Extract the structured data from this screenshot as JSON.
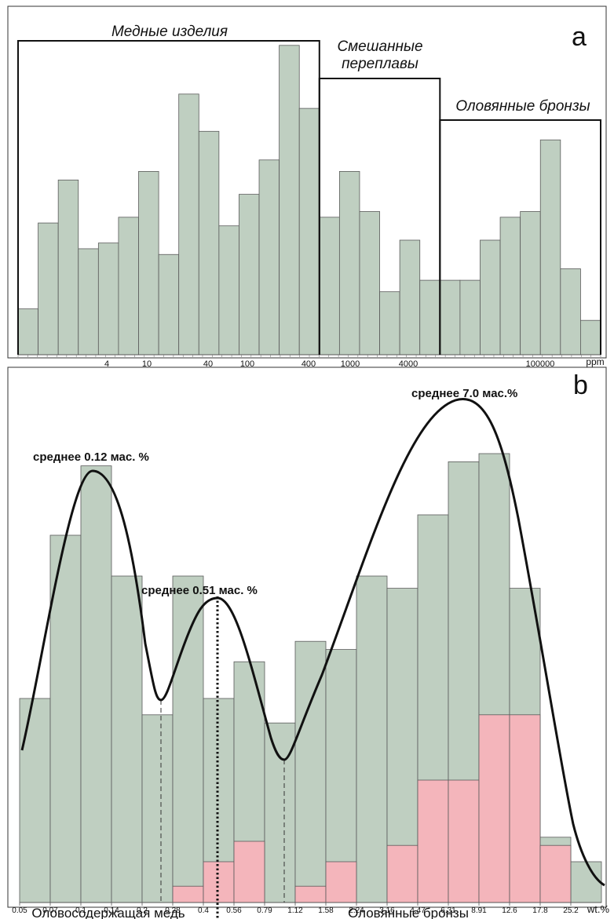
{
  "colors": {
    "green": "#bfcfc1",
    "pink": "#f4b5bb",
    "outline": "#5a5a5a",
    "curve": "#111111"
  },
  "chart_data": [
    {
      "type": "bar",
      "panel": "a",
      "x_scale": "log",
      "unit": "ppm",
      "tick_labels": [
        "4",
        "10",
        "40",
        "100",
        "400",
        "1000",
        "4000",
        "100000"
      ],
      "values": [
        1.6,
        4.6,
        6.1,
        3.7,
        3.9,
        4.8,
        6.4,
        3.5,
        9.1,
        7.8,
        4.5,
        5.6,
        6.8,
        10.8,
        8.6,
        4.8,
        6.4,
        5.0,
        2.2,
        4.0,
        2.6,
        2.6,
        2.6,
        4.0,
        4.8,
        5.0,
        7.5,
        3.0,
        1.2
      ],
      "groups": [
        {
          "label": "Медные изделия",
          "bins": [
            0,
            15
          ]
        },
        {
          "label": "Смешанные переплавы",
          "bins": [
            15,
            21
          ]
        },
        {
          "label": "Оловянные бронзы",
          "bins": [
            21,
            29
          ]
        }
      ]
    },
    {
      "type": "bar",
      "panel": "b",
      "unit": "wt.%",
      "categories": [
        "0.05",
        "0.07",
        "0.1",
        "0.14",
        "0.2",
        "0.28",
        "0.4",
        "0.56",
        "0.79",
        "1.12",
        "1.58",
        "2.24",
        "3.16",
        "4.47",
        "6.31",
        "8.91",
        "12.6",
        "17.8",
        "25.2"
      ],
      "series": [
        {
          "color": "green",
          "values": [
            5.0,
            9.0,
            10.7,
            8.0,
            4.6,
            8.0,
            5.0,
            5.9,
            4.4,
            6.4,
            6.2,
            8.0,
            7.7,
            9.5,
            10.8,
            11.0,
            7.7,
            1.6,
            1.0
          ]
        },
        {
          "color": "pink",
          "values": [
            0,
            0,
            0,
            0,
            0,
            0.4,
            1.0,
            1.5,
            0,
            0.4,
            1.0,
            0,
            1.4,
            3.0,
            3.0,
            4.6,
            4.6,
            1.4,
            0
          ]
        }
      ],
      "annotations": [
        "среднее 0.12 мас. %",
        "среднее 0.51 мас. %",
        "среднее 7.0 мас.%"
      ]
    }
  ],
  "panel_a": {
    "letter": "a",
    "unit": "ppm",
    "group1": "Медные изделия",
    "group2_line1": "Смешанные",
    "group2_line2": "переплавы",
    "group3": "Оловянные бронзы",
    "ticks": [
      "4",
      "10",
      "40",
      "100",
      "400",
      "1000",
      "4000",
      "100000"
    ]
  },
  "panel_b": {
    "letter": "b",
    "unit": "wt.%",
    "mean1": "среднее 0.12 мас. %",
    "mean2": "среднее 0.51 мас. %",
    "mean3": "среднее 7.0 мас.%",
    "ticks": [
      "0.05",
      "0.07",
      "0.1",
      "0.14",
      "0.2",
      "0.28",
      "0.4",
      "0.56",
      "0.79",
      "1.12",
      "1.58",
      "2.24",
      "3.16",
      "4.47",
      "6.31",
      "8.91",
      "12.6",
      "17.8",
      "25.2"
    ],
    "bottom_left": "Оловосодержащая медь",
    "bottom_right": "Оловянные бронзы"
  }
}
